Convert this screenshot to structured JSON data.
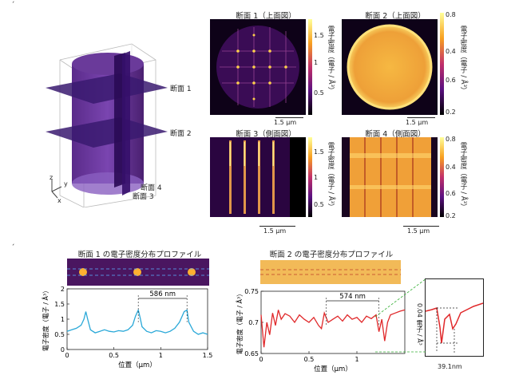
{
  "figure_top": {
    "mark_a": "ˊ",
    "cube": {
      "labels": [
        "断面 1",
        "断面 2",
        "断面 4",
        "断面 3"
      ],
      "axis": [
        "z",
        "y",
        "x"
      ]
    },
    "panels": [
      {
        "title": "断面 1（上面図）",
        "scale_bar": "1.5 μm",
        "colorbar_label": "電子密度（電子 / Å³）",
        "ticks": [
          "1.5",
          "1",
          "0.5"
        ]
      },
      {
        "title": "断面 2（上面図）",
        "scale_bar": "1.5 μm",
        "colorbar_label": "電子密度（電子 / Å³）",
        "ticks": [
          "0.8",
          "0.4",
          "0.6",
          "0.2"
        ]
      },
      {
        "title": "断面 3（側面図）",
        "scale_bar": "1.5 μm",
        "colorbar_label": "電子密度（電子 / Å³）",
        "ticks": [
          "1.5",
          "1",
          "0.5"
        ]
      },
      {
        "title": "断面 4（側面図）",
        "scale_bar": "1.5 μm",
        "colorbar_label": "電子密度（電子 / Å³）",
        "ticks": [
          "0.8",
          "0.4",
          "0.6",
          "0.2"
        ]
      }
    ]
  },
  "figure_bottom": {
    "mark_b": "ˊ",
    "left_title": "断面 1 の電子密度分布プロファイル",
    "right_title": "断面 2 の電子密度分布プロファイル",
    "left_measure": "586 nm",
    "right_measure": "574 nm",
    "inset_measure_v": "0.04 電子 / Å³",
    "inset_measure_h": "39.1nm"
  },
  "chart_data": [
    {
      "type": "line",
      "title": "断面 1 の電子密度分布プロファイル",
      "xlabel": "位置（μm）",
      "ylabel": "電子密度（電子 / Å³）",
      "xlim": [
        0,
        1.5
      ],
      "ylim": [
        0,
        2
      ],
      "xticks": [
        "0",
        "0.5",
        "1",
        "1.5"
      ],
      "yticks": [
        "0",
        "0.5",
        "1",
        "1.5",
        "2"
      ],
      "color": "#2aa8d8",
      "x": [
        0,
        0.05,
        0.1,
        0.15,
        0.18,
        0.2,
        0.22,
        0.25,
        0.3,
        0.35,
        0.4,
        0.45,
        0.5,
        0.55,
        0.6,
        0.65,
        0.7,
        0.73,
        0.76,
        0.78,
        0.8,
        0.85,
        0.9,
        0.95,
        1.0,
        1.05,
        1.1,
        1.15,
        1.2,
        1.25,
        1.28,
        1.3,
        1.35,
        1.4,
        1.45,
        1.5
      ],
      "y": [
        0.6,
        0.65,
        0.7,
        0.8,
        1.0,
        1.25,
        1.0,
        0.65,
        0.55,
        0.6,
        0.65,
        0.6,
        0.58,
        0.62,
        0.6,
        0.65,
        0.8,
        1.1,
        1.3,
        1.05,
        0.75,
        0.6,
        0.55,
        0.62,
        0.6,
        0.55,
        0.6,
        0.7,
        0.9,
        1.25,
        1.3,
        0.9,
        0.6,
        0.5,
        0.55,
        0.5
      ]
    },
    {
      "type": "line",
      "title": "断面 2 の電子密度分布プロファイル",
      "xlabel": "位置（μm）",
      "ylabel": "電子密度（電子 / Å³）",
      "xlim": [
        0,
        1.5
      ],
      "ylim": [
        0.65,
        0.75
      ],
      "xticks": [
        "0",
        "0.5",
        "1"
      ],
      "yticks": [
        "0.65",
        "0.7",
        "0.75"
      ],
      "color": "#e0282a",
      "x": [
        0,
        0.03,
        0.06,
        0.09,
        0.12,
        0.15,
        0.18,
        0.21,
        0.25,
        0.3,
        0.35,
        0.4,
        0.45,
        0.5,
        0.55,
        0.6,
        0.63,
        0.66,
        0.7,
        0.75,
        0.8,
        0.85,
        0.9,
        0.95,
        1.0,
        1.05,
        1.1,
        1.15,
        1.2,
        1.23,
        1.26,
        1.29,
        1.32,
        1.35,
        1.4,
        1.45,
        1.5
      ],
      "y": [
        0.712,
        0.66,
        0.7,
        0.68,
        0.715,
        0.695,
        0.72,
        0.705,
        0.714,
        0.71,
        0.7,
        0.712,
        0.705,
        0.7,
        0.708,
        0.695,
        0.69,
        0.715,
        0.7,
        0.705,
        0.71,
        0.702,
        0.712,
        0.705,
        0.708,
        0.7,
        0.71,
        0.706,
        0.712,
        0.685,
        0.705,
        0.67,
        0.7,
        0.712,
        0.715,
        0.718,
        0.72
      ]
    }
  ]
}
